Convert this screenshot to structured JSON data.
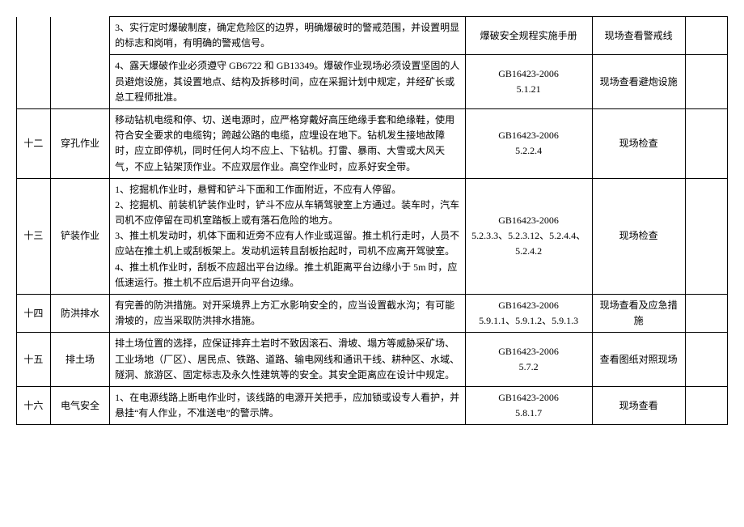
{
  "rows": [
    {
      "idx": "",
      "cat": "",
      "desc": "3、实行定时爆破制度，确定危险区的边界，明确爆破时的警戒范围，并设置明显的标志和岗哨，有明确的警戒信号。",
      "ref": "爆破安全规程实施手册",
      "chk": "现场查看警戒线",
      "last": "",
      "hideLeft": true
    },
    {
      "idx": "",
      "cat": "",
      "desc": "4、露天爆破作业必须遵守 GB6722 和 GB13349。爆破作业现场必须设置坚固的人员避炮设施，其设置地点、结构及拆移时间，应在采掘计划中规定，并经矿长或总工程师批准。",
      "ref": "GB16423-2006\n5.1.21",
      "chk": "现场查看避炮设施",
      "last": "",
      "hideLeft": true
    },
    {
      "idx": "十二",
      "cat": "穿孔作业",
      "desc": "移动钻机电缆和停、切、送电源时，应严格穿戴好高压绝缘手套和绝缘鞋，使用符合安全要求的电缆钩；跨越公路的电缆，应埋设在地下。钻机发生接地故障时，应立即停机，同时任何人均不应上、下钻机。打雷、暴雨、大雪或大风天气，不应上钻架顶作业。不应双层作业。高空作业时，应系好安全带。",
      "ref": "GB16423-2006\n5.2.2.4",
      "chk": "现场检查",
      "last": ""
    },
    {
      "idx": "十三",
      "cat": "铲装作业",
      "desc": "1、挖掘机作业时，悬臂和铲斗下面和工作面附近，不应有人停留。\n2、挖掘机、前装机铲装作业时，铲斗不应从车辆驾驶室上方通过。装车时，汽车司机不应停留在司机室踏板上或有落石危险的地方。\n3、推土机发动时，机体下面和近旁不应有人作业或逗留。推土机行走时，人员不应站在推土机上或刮板架上。发动机运转且刮板抬起时，司机不应离开驾驶室。\n4、推土机作业时，刮板不应超出平台边缘。推土机距离平台边缘小于 5m 时，应低速运行。推土机不应后退开向平台边缘。",
      "ref": "GB16423-2006\n5.2.3.3、5.2.3.12、5.2.4.4、5.2.4.2",
      "chk": "现场检查",
      "last": ""
    },
    {
      "idx": "十四",
      "cat": "防洪排水",
      "desc": "有完善的防洪措施。对开采境界上方汇水影响安全的，应当设置截水沟；有可能滑坡的，应当采取防洪排水措施。",
      "ref": "GB16423-2006\n5.9.1.1、5.9.1.2、5.9.1.3",
      "chk": "现场查看及应急措施",
      "last": ""
    },
    {
      "idx": "十五",
      "cat": "排土场",
      "desc": "排土场位置的选择，应保证排弃土岩时不致因滚石、滑坡、塌方等威胁采矿场、工业场地（厂区）、居民点、铁路、道路、输电网线和通讯干线、耕种区、水域、隧洞、旅游区、固定标志及永久性建筑等的安全。其安全距离应在设计中规定。",
      "ref": "GB16423-2006\n5.7.2",
      "chk": "查看图纸对照现场",
      "last": ""
    },
    {
      "idx": "十六",
      "cat": "电气安全",
      "desc": "1、在电源线路上断电作业时，该线路的电源开关把手，应加锁或设专人看护，并悬挂“有人作业，不准送电”的警示牌。",
      "ref": "GB16423-2006\n5.8.1.7",
      "chk": "现场查看",
      "last": ""
    }
  ]
}
